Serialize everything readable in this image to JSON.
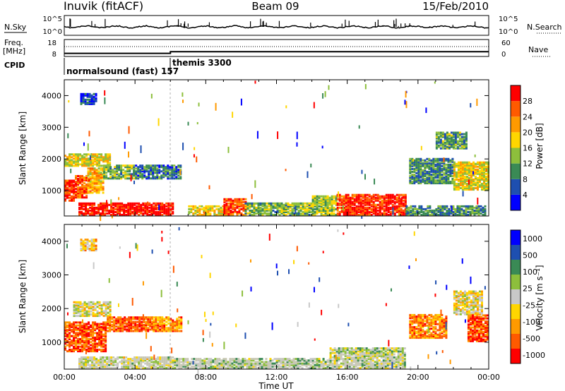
{
  "header": {
    "station": "Inuvik (fitACF)",
    "beam": "Beam 09",
    "date": "15/Feb/2010"
  },
  "left_labels": {
    "nsky": "N.Sky",
    "freq": "Freq.",
    "freq_unit": "[MHz]",
    "cpid": "CPID"
  },
  "right_labels": {
    "nsearch": "N.Search",
    "nave": "Nave"
  },
  "cpid_labels": {
    "first": "normalsound (fast) 157",
    "second": "themis 3300"
  },
  "colors": {
    "power": [
      "#0000ff",
      "#1e4fb0",
      "#3a8a55",
      "#8dbf3c",
      "#ffd600",
      "#ff9a00",
      "#ff5a00",
      "#ff0000"
    ],
    "velocity": [
      "#ff0000",
      "#ff5a00",
      "#ff9a00",
      "#ffd600",
      "#c8c8c8",
      "#8dbf3c",
      "#3a8a55",
      "#1e4fb0",
      "#0000ff"
    ],
    "ground": "#c8c8b4"
  },
  "chart_data": [
    {
      "type": "line",
      "name": "noise-panel",
      "ylabel_left": "N.Sky",
      "ylabel_right": "N.Search",
      "yticks_left": [
        "10^5",
        "10^0"
      ],
      "yticks_right": [
        "10^5",
        "10^0"
      ]
    },
    {
      "type": "line",
      "name": "frequency-panel",
      "ylabel_left": "Freq. [MHz]",
      "ylabel_right": "Nave",
      "yticks_left": [
        "18",
        "8"
      ],
      "yticks_right": [
        "60",
        "0"
      ],
      "x": [
        0,
        6,
        6,
        24
      ],
      "freq_mhz": [
        9.8,
        9.8,
        10.8,
        10.8
      ]
    },
    {
      "type": "heatmap",
      "name": "power-panel",
      "ylabel": "Slant Range [km]",
      "ylim": [
        200,
        4500
      ],
      "yticks": [
        1000,
        2000,
        3000,
        4000
      ],
      "xlim": [
        0,
        24
      ],
      "colorbar_label": "Power [dB]",
      "colorbar_ticks": [
        "4",
        "8",
        "12",
        "16",
        "20",
        "24",
        "28"
      ],
      "clim": [
        0,
        32
      ],
      "regions": [
        {
          "t0": 0.0,
          "t1": 0.6,
          "r0": 650,
          "r1": 1300,
          "level": 0.9
        },
        {
          "t0": 0.6,
          "t1": 1.3,
          "r0": 750,
          "r1": 1450,
          "level": 0.8
        },
        {
          "t0": 1.3,
          "t1": 2.2,
          "r0": 900,
          "r1": 1700,
          "level": 0.65
        },
        {
          "t0": 0.0,
          "t1": 2.6,
          "r0": 1750,
          "r1": 2150,
          "level": 0.55
        },
        {
          "t0": 2.2,
          "t1": 4.0,
          "r0": 1350,
          "r1": 1800,
          "level": 0.4
        },
        {
          "t0": 4.0,
          "t1": 6.6,
          "r0": 1350,
          "r1": 1800,
          "level": 0.25
        },
        {
          "t0": 0.8,
          "t1": 6.2,
          "r0": 200,
          "r1": 600,
          "level": 0.95
        },
        {
          "t0": 7.0,
          "t1": 9.0,
          "r0": 200,
          "r1": 500,
          "level": 0.55
        },
        {
          "t0": 9.0,
          "t1": 10.2,
          "r0": 200,
          "r1": 700,
          "level": 0.85
        },
        {
          "t0": 10.2,
          "t1": 14.0,
          "r0": 200,
          "r1": 600,
          "level": 0.4
        },
        {
          "t0": 14.0,
          "t1": 15.4,
          "r0": 200,
          "r1": 800,
          "level": 0.45
        },
        {
          "t0": 15.4,
          "t1": 19.3,
          "r0": 200,
          "r1": 850,
          "level": 0.9
        },
        {
          "t0": 19.3,
          "t1": 23.8,
          "r0": 200,
          "r1": 500,
          "level": 0.3
        },
        {
          "t0": 19.5,
          "t1": 22.0,
          "r0": 1200,
          "r1": 2000,
          "level": 0.3
        },
        {
          "t0": 21.0,
          "t1": 22.8,
          "r0": 2300,
          "r1": 2800,
          "level": 0.35
        },
        {
          "t0": 22.0,
          "t1": 24.0,
          "r0": 1000,
          "r1": 1900,
          "level": 0.55
        },
        {
          "t0": 0.9,
          "t1": 1.8,
          "r0": 3700,
          "r1": 4050,
          "level": 0.15
        }
      ]
    },
    {
      "type": "heatmap",
      "name": "velocity-panel",
      "ylabel": "Slant Range [km]",
      "xlabel": "Time UT",
      "ylim": [
        200,
        4500
      ],
      "yticks": [
        1000,
        2000,
        3000,
        4000
      ],
      "xlim": [
        0,
        24
      ],
      "xticks": [
        "00:00",
        "04:00",
        "08:00",
        "12:00",
        "16:00",
        "20:00",
        "00:00"
      ],
      "colorbar_label": "Velocity [m s⁻¹]",
      "colorbar_ticks": [
        "1000",
        "500",
        "100",
        "25",
        "-25",
        "-100",
        "-500",
        "-1000"
      ],
      "clim": [
        -1000,
        1000
      ],
      "regions": [
        {
          "t0": 0.0,
          "t1": 2.4,
          "r0": 700,
          "r1": 1600,
          "level": 0.15
        },
        {
          "t0": 0.5,
          "t1": 2.6,
          "r0": 1750,
          "r1": 2200,
          "level": 0.45
        },
        {
          "t0": 2.4,
          "t1": 5.0,
          "r0": 1300,
          "r1": 1750,
          "level": 0.15
        },
        {
          "t0": 5.0,
          "t1": 6.6,
          "r0": 1300,
          "r1": 1750,
          "level": 0.25
        },
        {
          "t0": 0.8,
          "t1": 6.2,
          "r0": 200,
          "r1": 550,
          "level": 0.5
        },
        {
          "t0": 6.2,
          "t1": 15.0,
          "r0": 200,
          "r1": 500,
          "level": 0.6
        },
        {
          "t0": 15.0,
          "t1": 19.3,
          "r0": 200,
          "r1": 800,
          "level": 0.55
        },
        {
          "t0": 19.5,
          "t1": 21.6,
          "r0": 1100,
          "r1": 1800,
          "level": 0.25
        },
        {
          "t0": 22.0,
          "t1": 23.6,
          "r0": 1800,
          "r1": 2500,
          "level": 0.45
        },
        {
          "t0": 22.8,
          "t1": 24.0,
          "r0": 1000,
          "r1": 1800,
          "level": 0.15
        },
        {
          "t0": 0.9,
          "t1": 1.8,
          "r0": 3700,
          "r1": 4050,
          "level": 0.35
        }
      ]
    }
  ]
}
